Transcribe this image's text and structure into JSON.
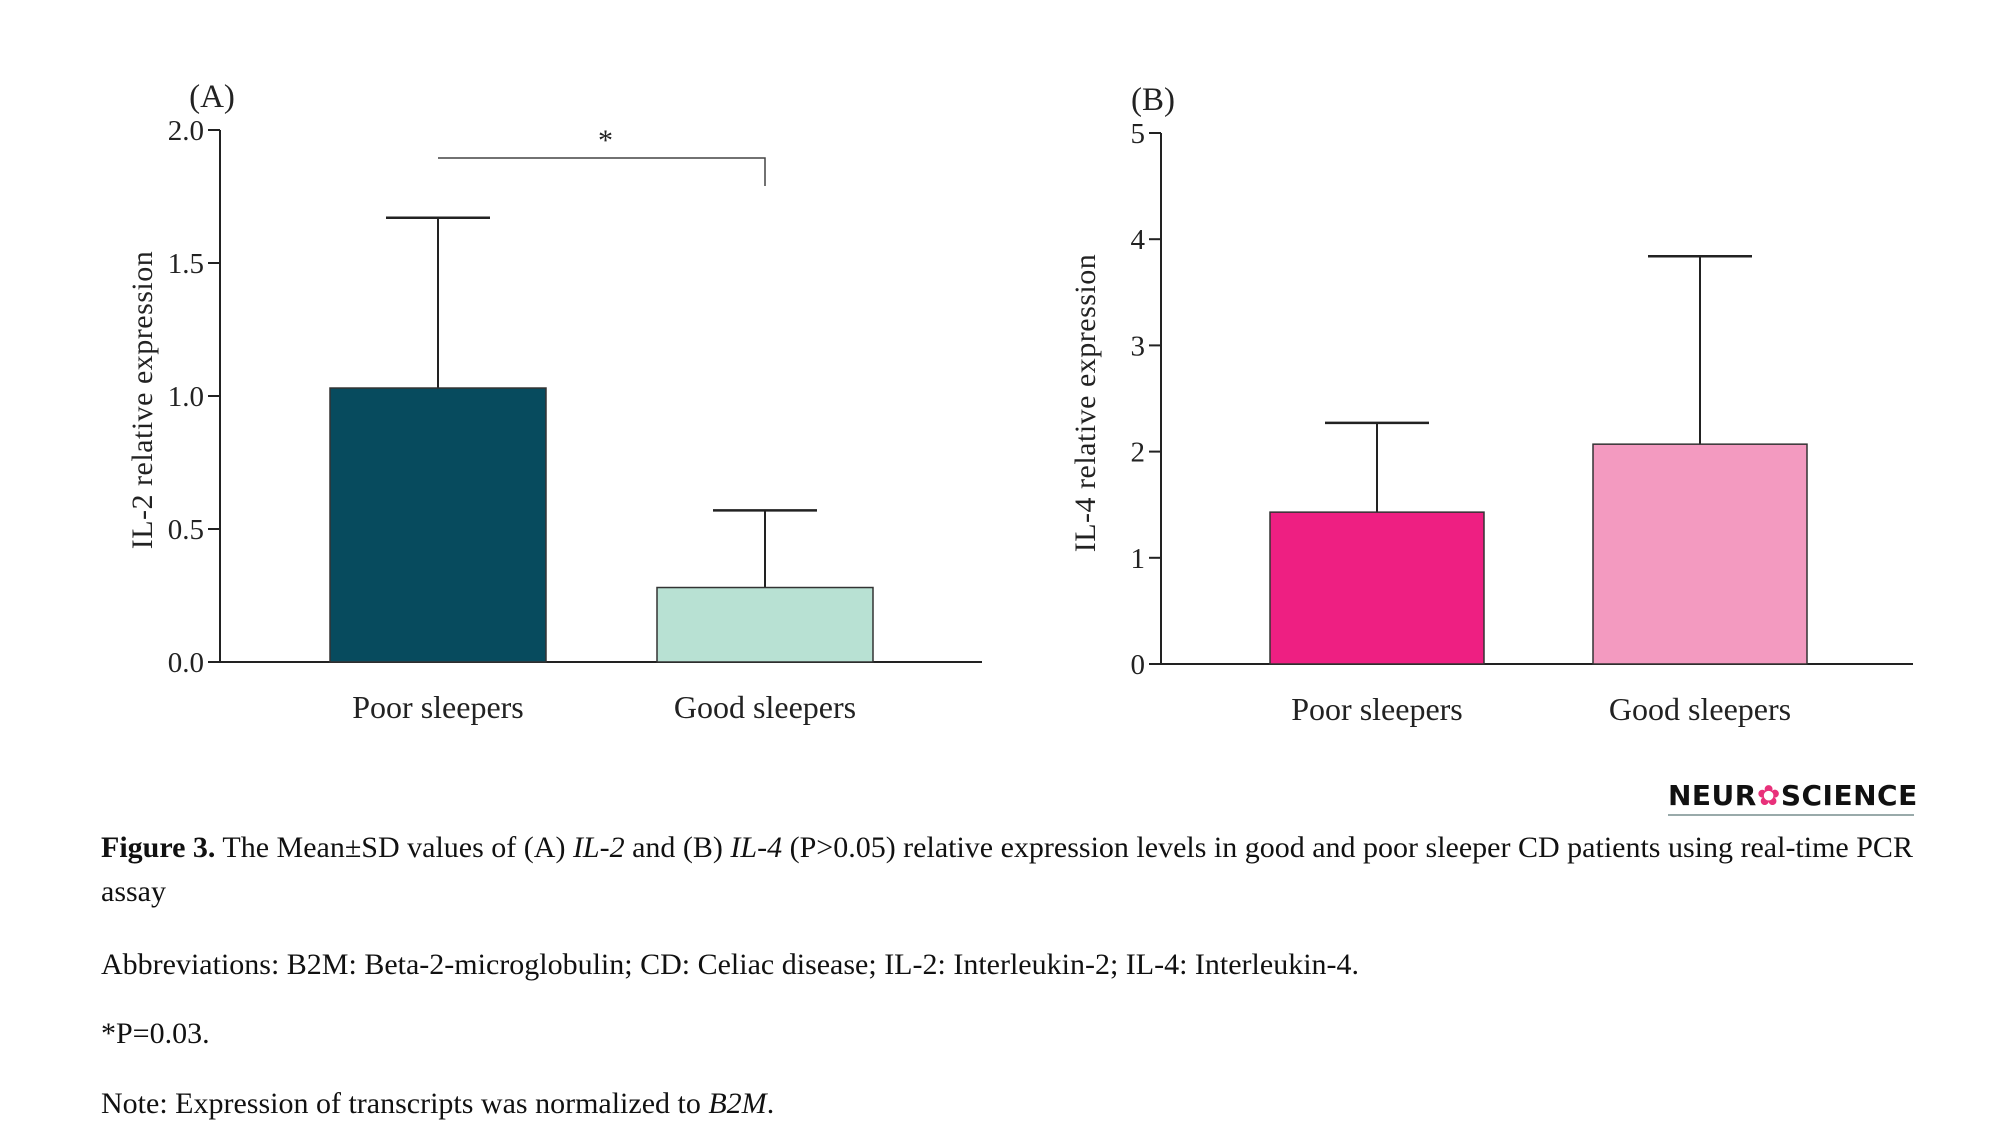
{
  "chart_data": [
    {
      "type": "bar",
      "panel_label": "(A)",
      "categories": [
        "Poor sleepers",
        "Good sleepers"
      ],
      "values": [
        1.03,
        0.28
      ],
      "error_sd": [
        0.64,
        0.29
      ],
      "colors": [
        "#074B5E",
        "#B8E1D3"
      ],
      "ylabel": "IL-2 relative expression",
      "ylim": [
        0,
        2.0
      ],
      "yticks": [
        "0.0",
        "0.5",
        "1.0",
        "1.5",
        "2.0"
      ],
      "significance": {
        "between": [
          "Poor sleepers",
          "Good sleepers"
        ],
        "label": "*"
      }
    },
    {
      "type": "bar",
      "panel_label": "(B)",
      "categories": [
        "Poor sleepers",
        "Good sleepers"
      ],
      "values": [
        1.43,
        2.07
      ],
      "error_sd": [
        0.84,
        1.77
      ],
      "colors": [
        "#EE1F82",
        "#F39AC0"
      ],
      "ylabel": "IL-4 relative expression",
      "ylim": [
        0,
        5
      ],
      "yticks": [
        "0",
        "1",
        "2",
        "3",
        "4",
        "5"
      ]
    }
  ],
  "logo": {
    "left": "NEUR",
    "right": "SCIENCE"
  },
  "caption": {
    "fig_label": "Figure 3.",
    "t1": " The Mean±SD values of (A) ",
    "g1": "IL-2",
    "t2": " and (B) ",
    "g2": "IL-4",
    "t3": " (P>0.05) relative expression levels in good and poor sleeper CD patients using real-time PCR assay"
  },
  "abbreviations": "Abbreviations: B2M: Beta-2-microglobulin; CD: Celiac disease; IL-2: Interleukin-2; IL-4: Interleukin-4.",
  "p_note": "*P=0.03.",
  "note": {
    "text": "Note: Expression of transcripts was normalized to ",
    "gene": "B2M",
    "end": "."
  }
}
